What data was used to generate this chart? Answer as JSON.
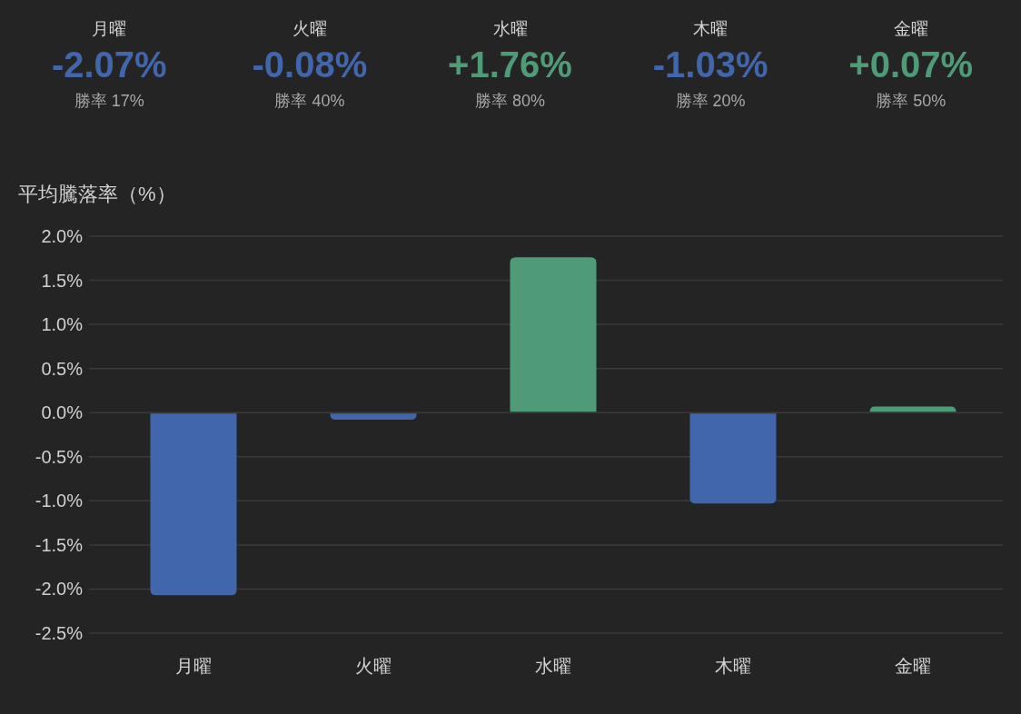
{
  "chart_data": [
    {
      "type": "other",
      "categories": [
        "月曜",
        "火曜",
        "水曜",
        "木曜",
        "金曜"
      ],
      "value_labels": [
        "-2.07%",
        "-0.08%",
        "+1.76%",
        "-1.03%",
        "+0.07%"
      ],
      "colors": [
        "#4166ab",
        "#4166ab",
        "#4f9b78",
        "#4166ab",
        "#4f9b78"
      ],
      "annotations": [
        "勝率 17%",
        "勝率 40%",
        "勝率 80%",
        "勝率 20%",
        "勝率 50%"
      ]
    },
    {
      "type": "bar",
      "ylabel": "平均騰落率（%）",
      "categories": [
        "月曜",
        "火曜",
        "水曜",
        "木曜",
        "金曜"
      ],
      "values": [
        -2.07,
        -0.08,
        1.76,
        -1.03,
        0.07
      ],
      "colors": [
        "#4166ab",
        "#4166ab",
        "#4f9b78",
        "#4166ab",
        "#4f9b78"
      ],
      "ylim": [
        -2.5,
        2.0
      ],
      "yticks": [
        {
          "value": 2.0,
          "label": "2.0%"
        },
        {
          "value": 1.5,
          "label": "1.5%"
        },
        {
          "value": 1.0,
          "label": "1.0%"
        },
        {
          "value": 0.5,
          "label": "0.5%"
        },
        {
          "value": 0,
          "label": "0.0%"
        },
        {
          "value": -0.5,
          "label": "-0.5%"
        },
        {
          "value": -1.0,
          "label": "-1.0%"
        },
        {
          "value": -1.5,
          "label": "-1.5%"
        },
        {
          "value": -2.0,
          "label": "-2.0%"
        },
        {
          "value": -2.5,
          "label": "-2.5%"
        }
      ],
      "grid": "y"
    }
  ]
}
